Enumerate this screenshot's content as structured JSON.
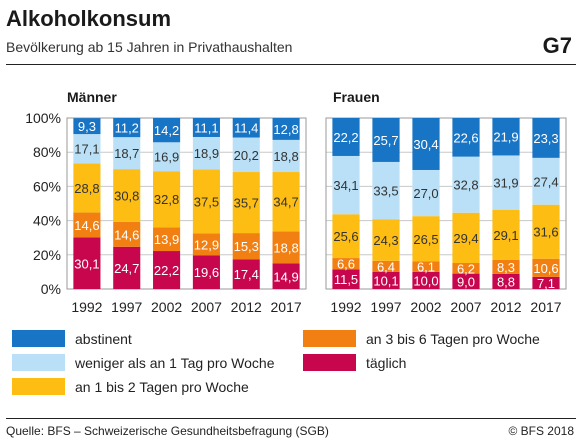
{
  "title": "Alkoholkonsum",
  "subtitle": "Bevölkerung ab 15 Jahren in Privathaushalten",
  "figure_number": "G7",
  "legend": [
    "abstinent",
    "weniger als an 1 Tag pro Woche",
    "an 1 bis 2 Tagen pro Woche",
    "an 3 bis 6 Tagen pro Woche",
    "täglich"
  ],
  "colors": {
    "abstinent": "#1874c4",
    "weniger": "#b9e0f6",
    "tage_1_2": "#fdbd12",
    "tage_3_6": "#f27f12",
    "taeglich": "#c8064e"
  },
  "source": "Quelle: BFS – Schweizerische Gesundheitsbefragung (SGB)",
  "copyright": "© BFS 2018",
  "chart_data": [
    {
      "type": "bar",
      "stacked": true,
      "title": "Männer",
      "categories": [
        "1992",
        "1997",
        "2002",
        "2007",
        "2012",
        "2017"
      ],
      "ylim": [
        0,
        100
      ],
      "yticks": [
        "0%",
        "20%",
        "40%",
        "60%",
        "80%",
        "100%"
      ],
      "grid": true,
      "series": [
        {
          "name": "täglich",
          "values": [
            30.1,
            24.7,
            22.2,
            19.6,
            17.4,
            14.9
          ],
          "labels": [
            "30,1",
            "24,7",
            "22,2",
            "19,6",
            "17,4",
            "14,9"
          ]
        },
        {
          "name": "an 3 bis 6 Tagen pro Woche",
          "values": [
            14.6,
            14.6,
            13.9,
            12.9,
            15.3,
            18.8
          ],
          "labels": [
            "14,6",
            "14,6",
            "13,9",
            "12,9",
            "15,3",
            "18,8"
          ]
        },
        {
          "name": "an 1 bis 2 Tagen pro Woche",
          "values": [
            28.8,
            30.8,
            32.8,
            37.5,
            35.7,
            34.7
          ],
          "labels": [
            "28,8",
            "30,8",
            "32,8",
            "37,5",
            "35,7",
            "34,7"
          ]
        },
        {
          "name": "weniger als an 1 Tag pro Woche",
          "values": [
            17.1,
            18.7,
            16.9,
            18.9,
            20.2,
            18.8
          ],
          "labels": [
            "17,1",
            "18,7",
            "16,9",
            "18,9",
            "20,2",
            "18,8"
          ]
        },
        {
          "name": "abstinent",
          "values": [
            9.3,
            11.2,
            14.2,
            11.1,
            11.4,
            12.8
          ],
          "labels": [
            "9,3",
            "11,2",
            "14,2",
            "11,1",
            "11,4",
            "12,8"
          ]
        }
      ]
    },
    {
      "type": "bar",
      "stacked": true,
      "title": "Frauen",
      "categories": [
        "1992",
        "1997",
        "2002",
        "2007",
        "2012",
        "2017"
      ],
      "ylim": [
        0,
        100
      ],
      "grid": true,
      "series": [
        {
          "name": "täglich",
          "values": [
            11.5,
            10.1,
            10.0,
            9.0,
            8.8,
            7.1
          ],
          "labels": [
            "11,5",
            "10,1",
            "10,0",
            "9,0",
            "8,8",
            "7,1"
          ]
        },
        {
          "name": "an 3 bis 6 Tagen pro Woche",
          "values": [
            6.6,
            6.4,
            6.1,
            6.2,
            8.3,
            10.6
          ],
          "labels": [
            "6,6",
            "6,4",
            "6,1",
            "6,2",
            "8,3",
            "10,6"
          ]
        },
        {
          "name": "an 1 bis 2 Tagen pro Woche",
          "values": [
            25.6,
            24.3,
            26.5,
            29.4,
            29.1,
            31.6
          ],
          "labels": [
            "25,6",
            "24,3",
            "26,5",
            "29,4",
            "29,1",
            "31,6"
          ]
        },
        {
          "name": "weniger als an 1 Tag pro Woche",
          "values": [
            34.1,
            33.5,
            27.0,
            32.8,
            31.9,
            27.4
          ],
          "labels": [
            "34,1",
            "33,5",
            "27,0",
            "32,8",
            "31,9",
            "27,4"
          ]
        },
        {
          "name": "abstinent",
          "values": [
            22.2,
            25.7,
            30.4,
            22.6,
            21.9,
            23.3
          ],
          "labels": [
            "22,2",
            "25,7",
            "30,4",
            "22,6",
            "21,9",
            "23,3"
          ]
        }
      ]
    }
  ]
}
